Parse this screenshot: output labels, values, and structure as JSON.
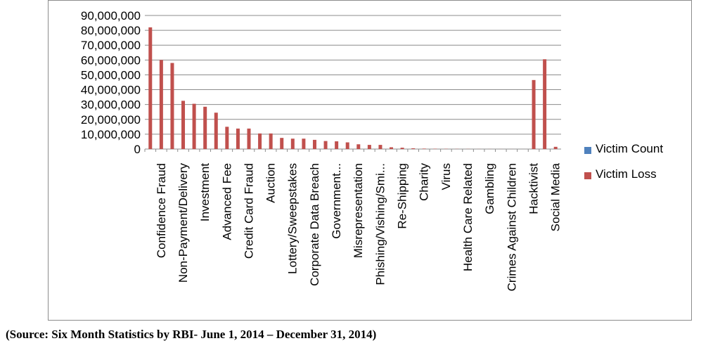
{
  "chart_data": {
    "type": "bar",
    "categories": [
      "Confidence Fraud",
      "",
      "Non-Payment/Delivery",
      "",
      "Investment",
      "",
      "Advanced Fee",
      "",
      "Credit Card Fraud",
      "",
      "Auction",
      "",
      "Lottery/Sweepstakes",
      "",
      "Corporate Data Breach",
      "",
      "Government...",
      "",
      "Misrepresentation",
      "",
      "Phishing/Vishing/Smi...",
      "",
      "Re-Shipping",
      "",
      "Charity",
      "",
      "Virus",
      "",
      "Health Care Related",
      "",
      "Gambling",
      "",
      "Crimes Against Children",
      "",
      "Hacktivist",
      "",
      "Social Media",
      ""
    ],
    "series": [
      {
        "name": "Victim Count",
        "values": [
          0,
          0,
          0,
          0,
          0,
          0,
          0,
          0,
          0,
          0,
          0,
          0,
          0,
          0,
          0,
          0,
          0,
          0,
          0,
          0,
          0,
          0,
          0,
          0,
          0,
          0,
          0,
          0,
          0,
          0,
          0,
          0,
          0,
          0,
          0,
          0,
          0,
          0
        ]
      },
      {
        "name": "Victim Loss",
        "values": [
          82000000,
          60000000,
          58000000,
          32500000,
          30500000,
          28500000,
          24500000,
          15000000,
          13800000,
          13800000,
          10500000,
          10500000,
          7500000,
          7000000,
          7000000,
          6200000,
          5400000,
          5200000,
          4500000,
          3200000,
          2800000,
          2800000,
          1200000,
          900000,
          500000,
          300000,
          200000,
          150000,
          100000,
          80000,
          50000,
          40000,
          30000,
          20000,
          10000,
          46500000,
          60500000,
          1500000
        ]
      }
    ],
    "ylim": [
      0,
      90000000
    ],
    "yticks": [
      "0",
      "10,000,000",
      "20,000,000",
      "30,000,000",
      "40,000,000",
      "50,000,000",
      "60,000,000",
      "70,000,000",
      "80,000,000",
      "90,000,000"
    ],
    "grid": true,
    "legend_position": "right",
    "colors": {
      "Victim Count": "#4f81bd",
      "Victim Loss": "#c0504d"
    }
  },
  "source_note": "(Source: Six Month Statistics by RBI- June 1, 2014 – December 31, 2014)"
}
